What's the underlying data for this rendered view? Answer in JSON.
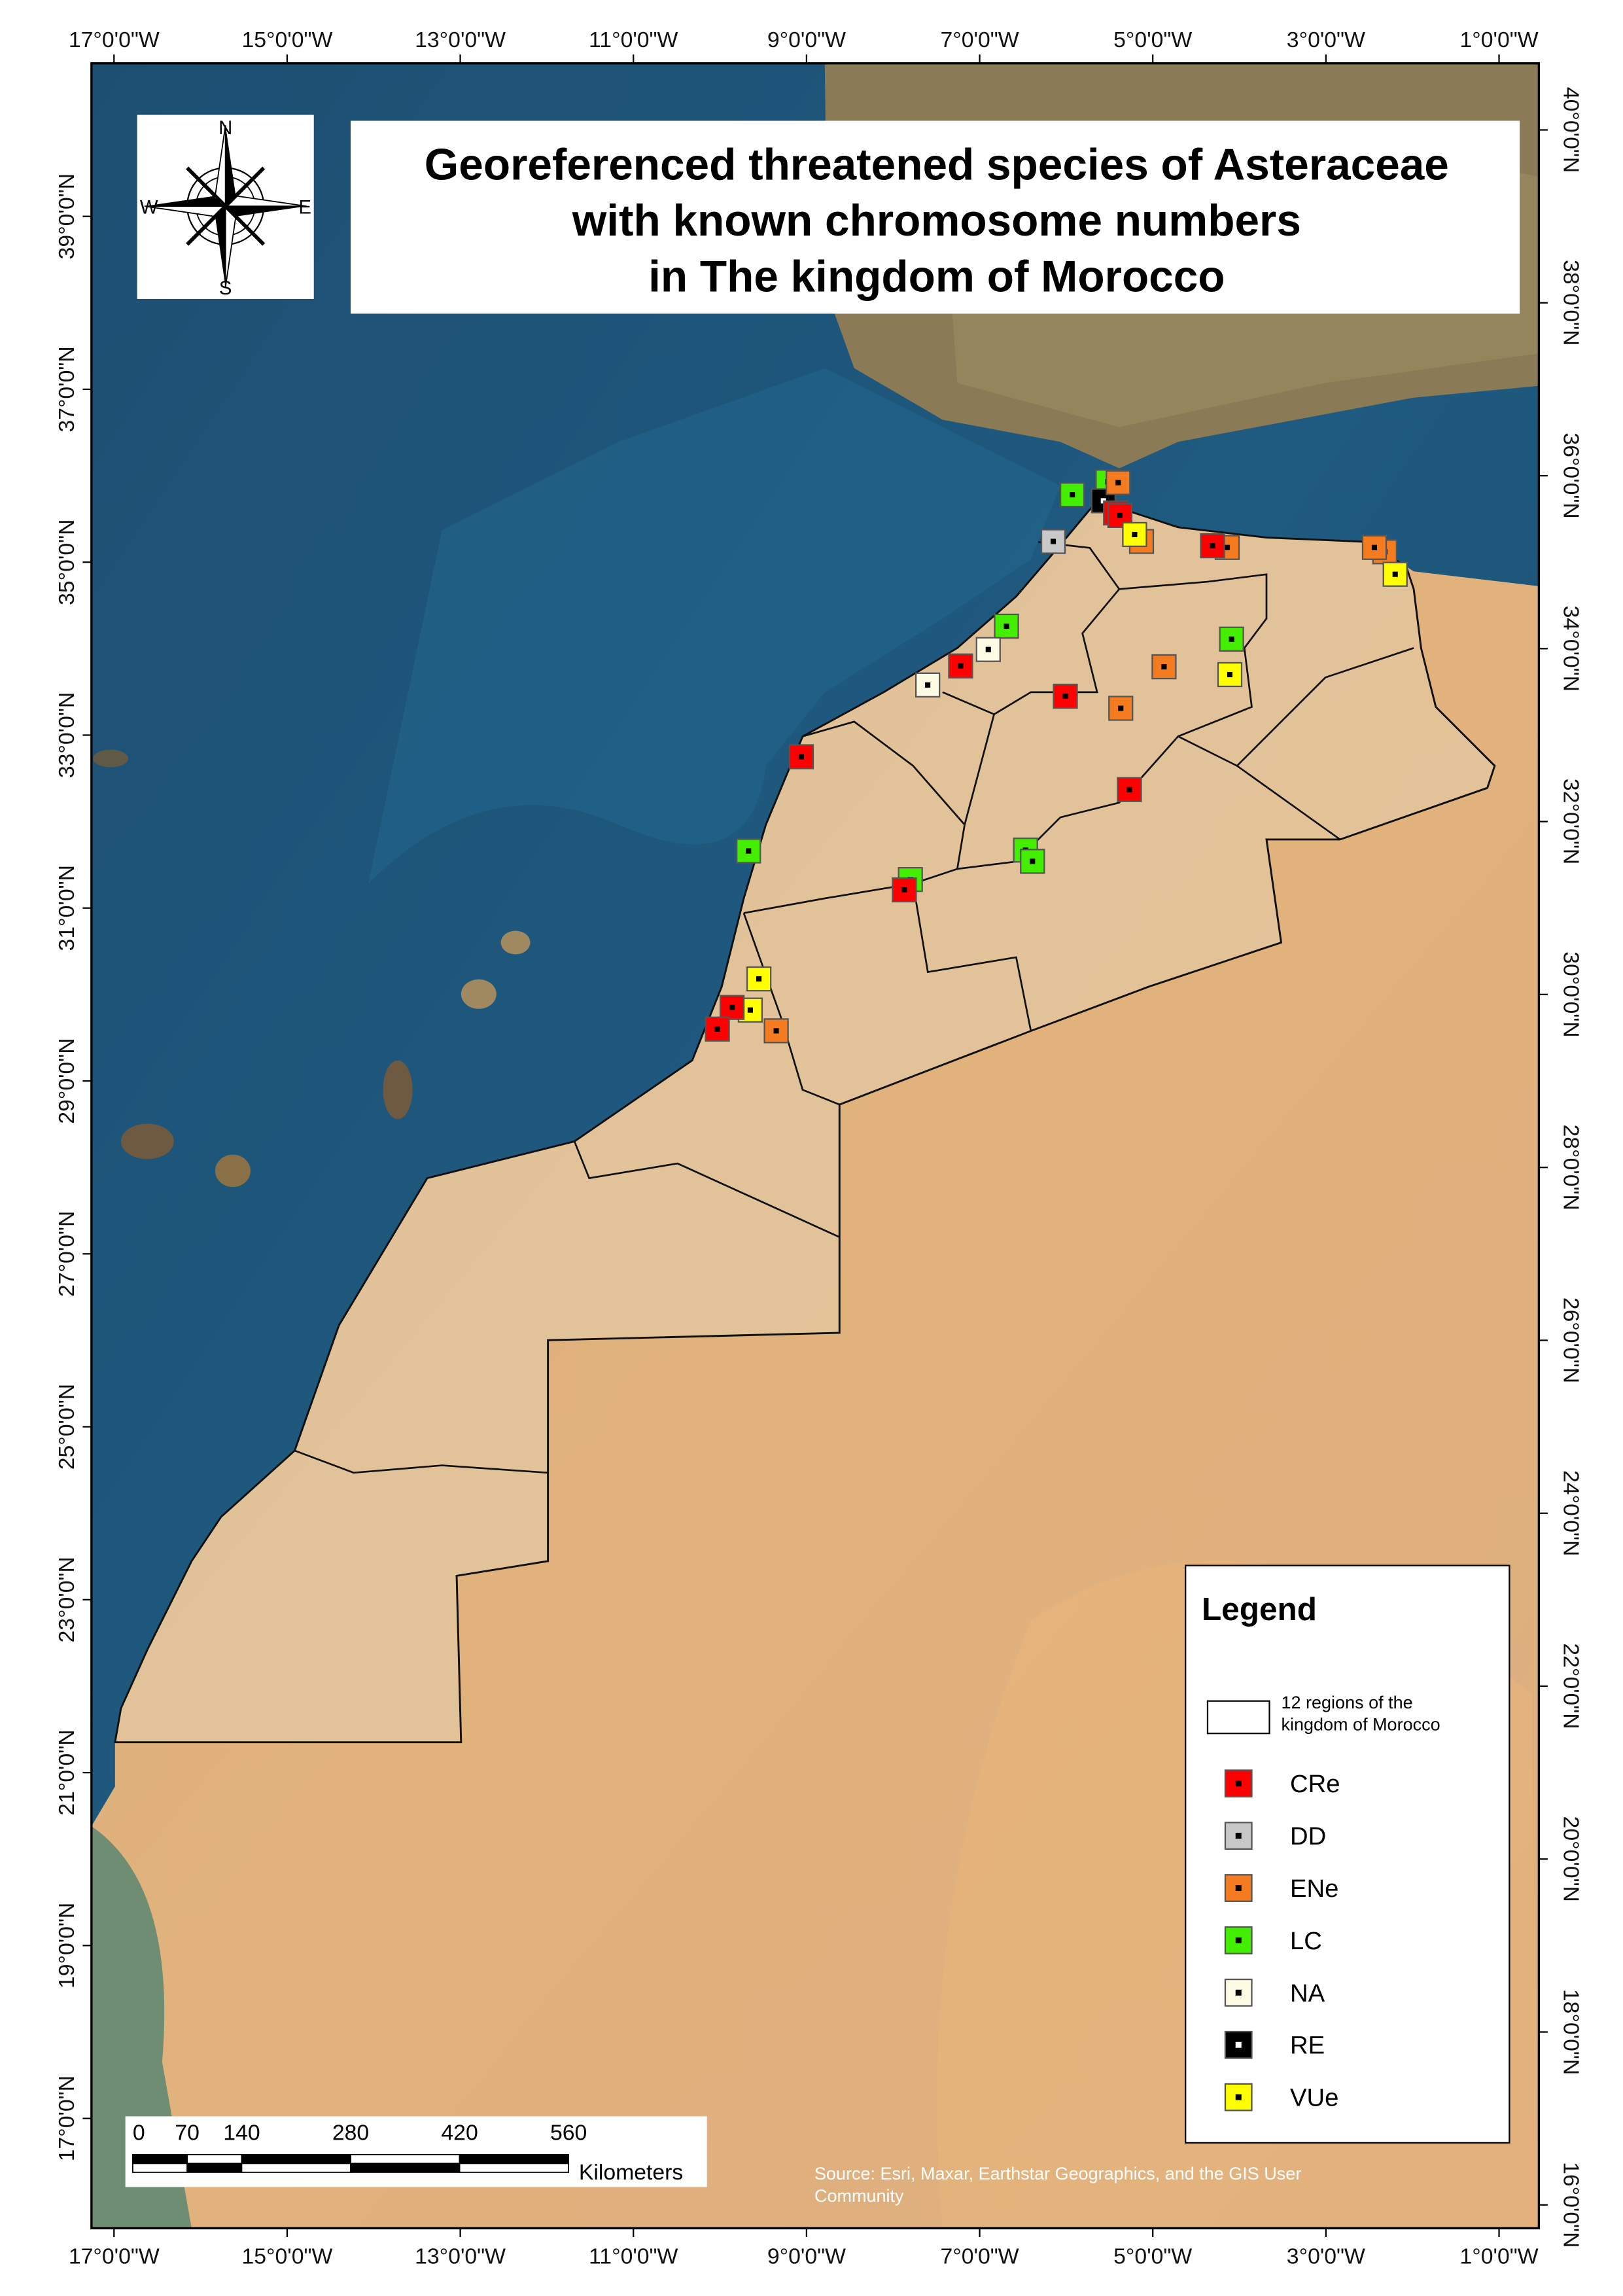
{
  "map": {
    "title": [
      "Georeferenced threatened species of Asteraceae",
      "with known chromosome numbers",
      "in The kingdom of Morocco"
    ],
    "compass": {
      "n": "N",
      "s": "S",
      "e": "E",
      "w": "W"
    },
    "xlim": [
      -17.26,
      -0.54
    ],
    "ylim": [
      15.73,
      40.77
    ],
    "xticks": [
      {
        "value": -17,
        "label": "17°0'0\"W"
      },
      {
        "value": -15,
        "label": "15°0'0\"W"
      },
      {
        "value": -13,
        "label": "13°0'0\"W"
      },
      {
        "value": -11,
        "label": "11°0'0\"W"
      },
      {
        "value": -9,
        "label": "9°0'0\"W"
      },
      {
        "value": -7,
        "label": "7°0'0\"W"
      },
      {
        "value": -5,
        "label": "5°0'0\"W"
      },
      {
        "value": -3,
        "label": "3°0'0\"W"
      },
      {
        "value": -1,
        "label": "1°0'0\"W"
      }
    ],
    "yticks_left": [
      {
        "value": 39,
        "label": "39°0'0\"N"
      },
      {
        "value": 37,
        "label": "37°0'0\"N"
      },
      {
        "value": 35,
        "label": "35°0'0\"N"
      },
      {
        "value": 33,
        "label": "33°0'0\"N"
      },
      {
        "value": 31,
        "label": "31°0'0\"N"
      },
      {
        "value": 29,
        "label": "29°0'0\"N"
      },
      {
        "value": 27,
        "label": "27°0'0\"N"
      },
      {
        "value": 25,
        "label": "25°0'0\"N"
      },
      {
        "value": 23,
        "label": "23°0'0\"N"
      },
      {
        "value": 21,
        "label": "21°0'0\"N"
      },
      {
        "value": 19,
        "label": "19°0'0\"N"
      },
      {
        "value": 17,
        "label": "17°0'0\"N"
      }
    ],
    "yticks_right": [
      {
        "value": 40,
        "label": "40°0'0\"N"
      },
      {
        "value": 38,
        "label": "38°0'0\"N"
      },
      {
        "value": 36,
        "label": "36°0'0\"N"
      },
      {
        "value": 34,
        "label": "34°0'0\"N"
      },
      {
        "value": 32,
        "label": "32°0'0\"N"
      },
      {
        "value": 30,
        "label": "30°0'0\"N"
      },
      {
        "value": 28,
        "label": "28°0'0\"N"
      },
      {
        "value": 26,
        "label": "26°0'0\"N"
      },
      {
        "value": 24,
        "label": "24°0'0\"N"
      },
      {
        "value": 22,
        "label": "22°0'0\"N"
      },
      {
        "value": 20,
        "label": "20°0'0\"N"
      },
      {
        "value": 18,
        "label": "18°0'0\"N"
      },
      {
        "value": 16,
        "label": "16°0'0\"N"
      }
    ],
    "legend": {
      "title": "Legend",
      "regions_label": [
        "12 regions of the",
        "kingdom of Morocco"
      ],
      "categories": [
        {
          "name": "CRe",
          "color": "#ff0000"
        },
        {
          "name": "DD",
          "color": "#c8c8c8"
        },
        {
          "name": "ENe",
          "color": "#f47b20"
        },
        {
          "name": "LC",
          "color": "#44ee00"
        },
        {
          "name": "NA",
          "color": "#fdfbe4"
        },
        {
          "name": "RE",
          "color": "#000000"
        },
        {
          "name": "VUe",
          "color": "#ffff00"
        }
      ]
    },
    "points": [
      {
        "status": "LC",
        "lon": -5.52,
        "lat": 35.93
      },
      {
        "status": "LC",
        "lon": -5.93,
        "lat": 35.78
      },
      {
        "status": "RE",
        "lon": -5.57,
        "lat": 35.71
      },
      {
        "status": "ENe",
        "lon": -5.4,
        "lat": 35.92
      },
      {
        "status": "CRe",
        "lon": -5.43,
        "lat": 35.57
      },
      {
        "status": "CRe",
        "lon": -5.38,
        "lat": 35.54
      },
      {
        "status": "ENe",
        "lon": -5.13,
        "lat": 35.24
      },
      {
        "status": "VUe",
        "lon": -5.21,
        "lat": 35.32
      },
      {
        "status": "DD",
        "lon": -6.15,
        "lat": 35.24
      },
      {
        "status": "ENe",
        "lon": -4.14,
        "lat": 35.17
      },
      {
        "status": "CRe",
        "lon": -4.31,
        "lat": 35.19
      },
      {
        "status": "ENe",
        "lon": -2.32,
        "lat": 35.12
      },
      {
        "status": "ENe",
        "lon": -2.44,
        "lat": 35.17
      },
      {
        "status": "VUe",
        "lon": -2.2,
        "lat": 34.86
      },
      {
        "status": "LC",
        "lon": -6.69,
        "lat": 34.26
      },
      {
        "status": "NA",
        "lon": -6.9,
        "lat": 33.99
      },
      {
        "status": "CRe",
        "lon": -7.22,
        "lat": 33.8
      },
      {
        "status": "NA",
        "lon": -7.6,
        "lat": 33.58
      },
      {
        "status": "CRe",
        "lon": -6.01,
        "lat": 33.45
      },
      {
        "status": "ENe",
        "lon": -4.87,
        "lat": 33.79
      },
      {
        "status": "ENe",
        "lon": -5.37,
        "lat": 33.31
      },
      {
        "status": "LC",
        "lon": -4.09,
        "lat": 34.11
      },
      {
        "status": "VUe",
        "lon": -4.11,
        "lat": 33.7
      },
      {
        "status": "CRe",
        "lon": -9.06,
        "lat": 32.75
      },
      {
        "status": "CRe",
        "lon": -5.27,
        "lat": 32.37
      },
      {
        "status": "LC",
        "lon": -9.67,
        "lat": 31.66
      },
      {
        "status": "LC",
        "lon": -6.47,
        "lat": 31.67
      },
      {
        "status": "LC",
        "lon": -6.39,
        "lat": 31.54
      },
      {
        "status": "LC",
        "lon": -7.8,
        "lat": 31.33
      },
      {
        "status": "CRe",
        "lon": -7.87,
        "lat": 31.21
      },
      {
        "status": "VUe",
        "lon": -9.55,
        "lat": 30.18
      },
      {
        "status": "VUe",
        "lon": -9.65,
        "lat": 29.82
      },
      {
        "status": "CRe",
        "lon": -9.86,
        "lat": 29.85
      },
      {
        "status": "CRe",
        "lon": -10.03,
        "lat": 29.6
      },
      {
        "status": "ENe",
        "lon": -9.35,
        "lat": 29.58
      }
    ],
    "scale_bar": {
      "ticks": [
        0,
        70,
        140,
        280,
        420,
        560
      ],
      "max": 560,
      "unit": "Kilometers"
    },
    "source": [
      "Source: Esri, Maxar, Earthstar Geographics, and the GIS User",
      "Community"
    ]
  }
}
